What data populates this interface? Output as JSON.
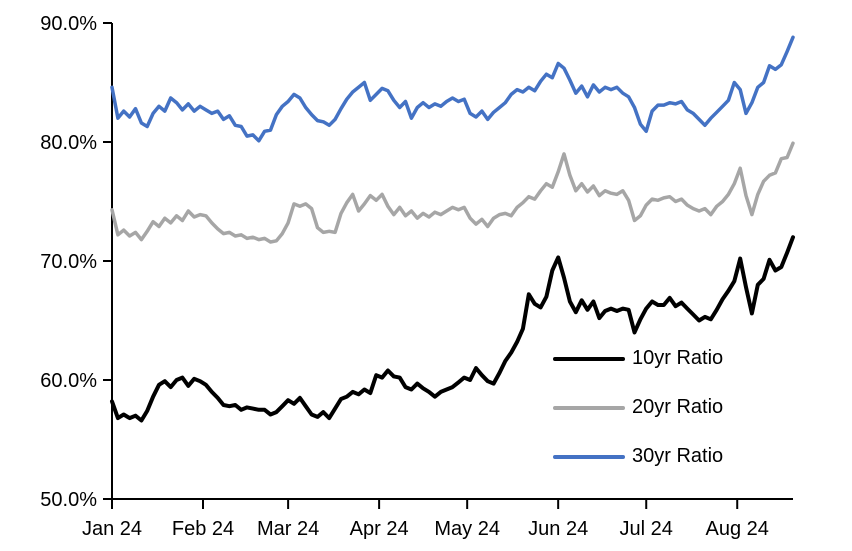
{
  "chart_data": {
    "type": "line",
    "title": "",
    "xlabel": "",
    "ylabel": "",
    "grid": false,
    "background_color": "#ffffff",
    "axis_color": "#000000",
    "ylim": [
      50,
      90
    ],
    "y_ticks": [
      {
        "value": 90,
        "label": "90.0%"
      },
      {
        "value": 80,
        "label": "80.0%"
      },
      {
        "value": 70,
        "label": "70.0%"
      },
      {
        "value": 60,
        "label": "60.0%"
      },
      {
        "value": 50,
        "label": "50.0%"
      }
    ],
    "x": {
      "unit": "days-from-jan-1",
      "start_day": 0,
      "end_day": 232,
      "month_ticks": [
        {
          "label": "Jan 24",
          "day": 0
        },
        {
          "label": "Feb 24",
          "day": 31
        },
        {
          "label": "Mar 24",
          "day": 60
        },
        {
          "label": "Apr 24",
          "day": 91
        },
        {
          "label": "May 24",
          "day": 121
        },
        {
          "label": "Jun 24",
          "day": 152
        },
        {
          "label": "Jul 24",
          "day": 182
        },
        {
          "label": "Aug 24",
          "day": 213
        }
      ]
    },
    "sample_step_days": 2,
    "legend_position": "inside-lower-right",
    "series": [
      {
        "name": "10yr Ratio",
        "color": "#000000",
        "stroke_width": 4,
        "values": [
          58.2,
          56.8,
          57.1,
          56.8,
          57.0,
          56.6,
          57.4,
          58.6,
          59.6,
          59.9,
          59.4,
          60.0,
          60.2,
          59.5,
          60.1,
          59.9,
          59.6,
          59.0,
          58.5,
          57.9,
          57.8,
          57.9,
          57.5,
          57.7,
          57.6,
          57.5,
          57.5,
          57.1,
          57.3,
          57.8,
          58.3,
          58.0,
          58.5,
          57.8,
          57.1,
          56.9,
          57.3,
          56.8,
          57.6,
          58.4,
          58.6,
          59.0,
          58.8,
          59.2,
          58.9,
          60.4,
          60.2,
          60.8,
          60.3,
          60.2,
          59.4,
          59.2,
          59.7,
          59.3,
          59.0,
          58.6,
          59.0,
          59.2,
          59.4,
          59.8,
          60.2,
          60.0,
          61.0,
          60.4,
          59.9,
          59.7,
          60.6,
          61.6,
          62.3,
          63.2,
          64.3,
          67.2,
          66.4,
          66.1,
          67.0,
          69.2,
          70.3,
          68.6,
          66.6,
          65.7,
          66.7,
          65.9,
          66.6,
          65.2,
          65.8,
          66.0,
          65.8,
          66.0,
          65.9,
          64.0,
          65.1,
          66.0,
          66.6,
          66.3,
          66.3,
          66.9,
          66.2,
          66.5,
          66.0,
          65.5,
          65.0,
          65.3,
          65.1,
          65.9,
          66.8,
          67.5,
          68.3,
          70.2,
          67.8,
          65.6,
          68.0,
          68.5,
          70.1,
          69.2,
          69.5,
          70.7,
          72.0
        ]
      },
      {
        "name": "20yr Ratio",
        "color": "#A6A6A6",
        "stroke_width": 3.5,
        "values": [
          74.3,
          72.2,
          72.6,
          72.1,
          72.4,
          71.8,
          72.5,
          73.3,
          72.9,
          73.6,
          73.2,
          73.8,
          73.4,
          74.2,
          73.7,
          73.9,
          73.8,
          73.2,
          72.7,
          72.3,
          72.4,
          72.1,
          72.2,
          71.9,
          72.0,
          71.8,
          71.9,
          71.6,
          71.7,
          72.3,
          73.2,
          74.8,
          74.6,
          74.8,
          74.4,
          72.8,
          72.4,
          72.5,
          72.4,
          74.0,
          74.9,
          75.6,
          74.2,
          74.8,
          75.5,
          75.1,
          75.6,
          74.6,
          73.9,
          74.5,
          73.8,
          74.2,
          73.6,
          74.0,
          73.7,
          74.1,
          73.9,
          74.2,
          74.5,
          74.3,
          74.5,
          73.6,
          73.1,
          73.5,
          72.9,
          73.6,
          73.9,
          74.0,
          73.8,
          74.5,
          74.9,
          75.4,
          75.2,
          75.9,
          76.5,
          76.2,
          77.5,
          79.0,
          77.2,
          75.9,
          76.5,
          75.8,
          76.3,
          75.5,
          75.9,
          75.7,
          75.6,
          75.9,
          75.1,
          73.4,
          73.8,
          74.7,
          75.2,
          75.1,
          75.3,
          75.4,
          75.0,
          75.2,
          74.7,
          74.4,
          74.2,
          74.4,
          73.9,
          74.6,
          75.0,
          75.6,
          76.5,
          77.8,
          75.5,
          73.9,
          75.6,
          76.7,
          77.2,
          77.4,
          78.6,
          78.7,
          79.9
        ]
      },
      {
        "name": "30yr Ratio",
        "color": "#4472C4",
        "stroke_width": 3.5,
        "values": [
          84.6,
          82.0,
          82.6,
          82.1,
          82.8,
          81.6,
          81.3,
          82.4,
          83.0,
          82.6,
          83.7,
          83.3,
          82.7,
          83.2,
          82.6,
          83.0,
          82.7,
          82.4,
          82.6,
          81.9,
          82.2,
          81.4,
          81.3,
          80.5,
          80.6,
          80.1,
          80.9,
          81.0,
          82.3,
          83.0,
          83.4,
          84.0,
          83.7,
          82.9,
          82.3,
          81.8,
          81.7,
          81.4,
          81.9,
          82.8,
          83.6,
          84.2,
          84.6,
          85.0,
          83.5,
          84.0,
          84.5,
          84.3,
          83.5,
          82.9,
          83.4,
          82.0,
          82.9,
          83.3,
          82.9,
          83.2,
          83.0,
          83.4,
          83.7,
          83.4,
          83.6,
          82.4,
          82.1,
          82.6,
          81.9,
          82.5,
          82.9,
          83.3,
          84.0,
          84.4,
          84.2,
          84.6,
          84.3,
          85.1,
          85.7,
          85.4,
          86.6,
          86.2,
          85.2,
          84.1,
          84.7,
          83.8,
          84.8,
          84.2,
          84.6,
          84.4,
          84.6,
          84.1,
          83.8,
          82.9,
          81.5,
          80.9,
          82.6,
          83.1,
          83.1,
          83.3,
          83.2,
          83.4,
          82.7,
          82.4,
          81.9,
          81.4,
          82.0,
          82.5,
          83.0,
          83.5,
          85.0,
          84.4,
          82.4,
          83.3,
          84.6,
          85.0,
          86.4,
          86.1,
          86.5,
          87.6,
          88.8
        ]
      }
    ]
  }
}
